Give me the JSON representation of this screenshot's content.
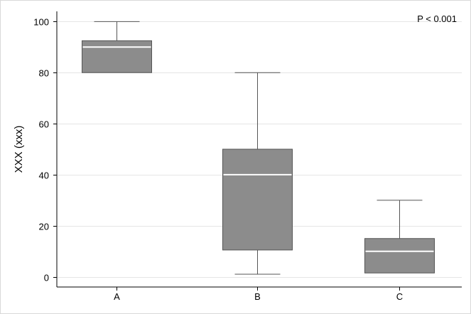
{
  "chart_data": {
    "type": "box",
    "categories": [
      "A",
      "B",
      "C"
    ],
    "boxes": [
      {
        "category": "A",
        "whisker_low": 80,
        "q1": 80,
        "median": 90,
        "q3": 92.5,
        "whisker_high": 100
      },
      {
        "category": "B",
        "whisker_low": 1,
        "q1": 10.5,
        "median": 40,
        "q3": 50,
        "whisker_high": 80
      },
      {
        "category": "C",
        "whisker_low": 1.5,
        "q1": 1.5,
        "median": 10,
        "q3": 15,
        "whisker_high": 30
      }
    ],
    "title": "",
    "xlabel": "",
    "ylabel": "XXX (xxx)",
    "ylim": [
      -4,
      104
    ],
    "yticks": [
      0,
      20,
      40,
      60,
      80,
      100
    ],
    "ytick_labels": [
      "0",
      "20",
      "40",
      "60",
      "80",
      "100"
    ],
    "grid": true,
    "annotation": "P < 0.001",
    "colors": {
      "box_fill": "#8c8c8c",
      "box_stroke": "#555555",
      "median": "#ffffff",
      "whisker": "#555555",
      "grid": "#e5e5e5"
    }
  }
}
